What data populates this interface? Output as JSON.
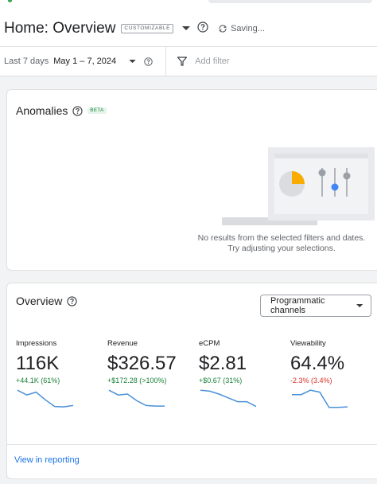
{
  "header": {
    "title": "Home: Overview",
    "chip": "CUSTOMIZABLE",
    "status": "Saving..."
  },
  "filter_bar": {
    "range_label": "Last 7 days",
    "range_value": "May 1 – 7, 2024",
    "add_filter": "Add filter"
  },
  "anomalies": {
    "title": "Anomalies",
    "badge": "BETA",
    "empty_line1": "No results from the selected filters and dates.",
    "empty_line2": "Try adjusting your selections."
  },
  "overview": {
    "title": "Overview",
    "dropdown_value": "Programmatic channels",
    "metrics": [
      {
        "label": "Impressions",
        "value": "116K",
        "change": "+44.1K (61%)",
        "trend": "up",
        "spark": [
          0.95,
          0.7,
          0.85,
          0.45,
          0.1,
          0.08,
          0.15
        ]
      },
      {
        "label": "Revenue",
        "value": "$326.57",
        "change": "+$172.28 (>100%)",
        "trend": "up",
        "spark": [
          0.95,
          0.7,
          0.75,
          0.4,
          0.15,
          0.12,
          0.12
        ]
      },
      {
        "label": "eCPM",
        "value": "$2.81",
        "change": "+$0.67 (31%)",
        "trend": "up",
        "spark": [
          0.95,
          0.9,
          0.75,
          0.55,
          0.35,
          0.35,
          0.1
        ]
      },
      {
        "label": "Viewability",
        "value": "64.4%",
        "change": "-2.3% (3.4%)",
        "trend": "down",
        "spark": [
          0.72,
          0.72,
          0.95,
          0.85,
          0.05,
          0.05,
          0.08
        ]
      }
    ],
    "link": "View in reporting"
  },
  "colors": {
    "accent": "#1a73e8",
    "spark": "#4a90d9",
    "positive": "#188038",
    "negative": "#d93025",
    "pie_highlight": "#f9ab00"
  }
}
